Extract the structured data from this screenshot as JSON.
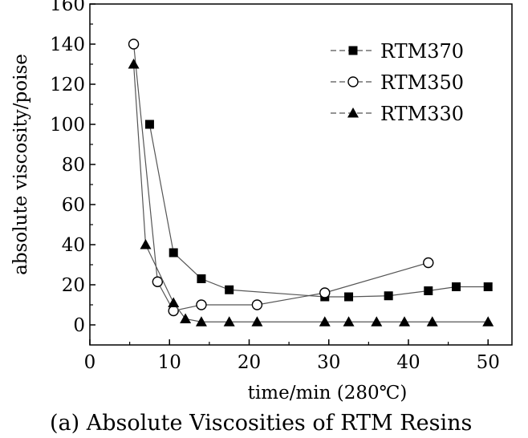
{
  "chart_data": {
    "type": "line",
    "title": "",
    "caption": "(a)  Absolute Viscosities of RTM Resins",
    "xlabel": "time/min  (280℃)",
    "ylabel": "absolute viscosity/poise",
    "xlim": [
      0,
      53
    ],
    "ylim": [
      -10,
      160
    ],
    "xticks": [
      0,
      10,
      20,
      30,
      40,
      50
    ],
    "yticks": [
      0,
      20,
      40,
      60,
      80,
      100,
      120,
      140,
      160
    ],
    "grid": false,
    "legend_position": "top-right",
    "series": [
      {
        "name": "RTM370",
        "marker": "filled-square",
        "x": [
          7.5,
          10.5,
          14,
          17.5,
          29.5,
          32.5,
          37.5,
          42.5,
          46,
          50
        ],
        "y": [
          100,
          36,
          23,
          17.5,
          14,
          14,
          14.5,
          17,
          19,
          19
        ]
      },
      {
        "name": "RTM350",
        "marker": "open-circle",
        "x": [
          5.5,
          8.5,
          10.5,
          14,
          21,
          29.5,
          42.5
        ],
        "y": [
          140,
          21.5,
          7,
          10,
          10,
          16,
          31
        ]
      },
      {
        "name": "RTM330",
        "marker": "filled-triangle",
        "x": [
          5.5,
          7,
          10.5,
          12,
          14,
          17.5,
          21,
          29.5,
          32.5,
          36,
          39.5,
          43,
          50
        ],
        "y": [
          130,
          40,
          11,
          3,
          1.5,
          1.5,
          1.5,
          1.5,
          1.5,
          1.5,
          1.5,
          1.5,
          1.5
        ]
      }
    ]
  }
}
